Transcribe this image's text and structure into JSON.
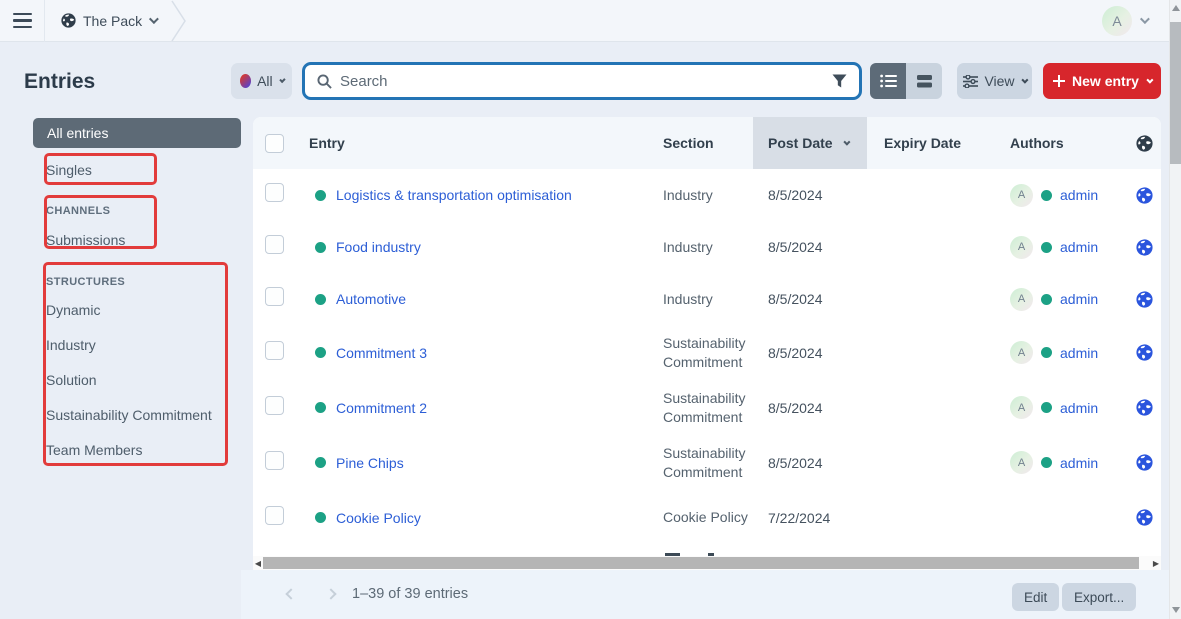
{
  "topbar": {
    "site_name": "The Pack",
    "user_initial": "A"
  },
  "page_title": "Entries",
  "toolbar": {
    "site_filter_label": "All",
    "search_placeholder": "Search",
    "view_label": "View",
    "new_entry_label": "New entry"
  },
  "sidebar": {
    "all_entries_label": "All entries",
    "singles_label": "Singles",
    "channels_heading": "CHANNELS",
    "channels": [
      "Submissions"
    ],
    "structures_heading": "STRUCTURES",
    "structures": [
      "Dynamic",
      "Industry",
      "Solution",
      "Sustainability Commitment",
      "Team Members"
    ]
  },
  "table": {
    "columns": [
      "Entry",
      "Section",
      "Post Date",
      "Expiry Date",
      "Authors"
    ],
    "sorted_column": "Post Date",
    "rows": [
      {
        "title": "Logistics & transportation optimisation",
        "section": "Industry",
        "post_date": "8/5/2024",
        "expiry_date": "",
        "author": "admin"
      },
      {
        "title": "Food industry",
        "section": "Industry",
        "post_date": "8/5/2024",
        "expiry_date": "",
        "author": "admin"
      },
      {
        "title": "Automotive",
        "section": "Industry",
        "post_date": "8/5/2024",
        "expiry_date": "",
        "author": "admin"
      },
      {
        "title": "Commitment 3",
        "section": "Sustainability Commitment",
        "post_date": "8/5/2024",
        "expiry_date": "",
        "author": "admin"
      },
      {
        "title": "Commitment 2",
        "section": "Sustainability Commitment",
        "post_date": "8/5/2024",
        "expiry_date": "",
        "author": "admin"
      },
      {
        "title": "Pine Chips",
        "section": "Sustainability Commitment",
        "post_date": "8/5/2024",
        "expiry_date": "",
        "author": "admin"
      },
      {
        "title": "Cookie Policy",
        "section": "Cookie Policy",
        "post_date": "7/22/2024",
        "expiry_date": "",
        "author": ""
      }
    ],
    "author_avatar_initial": "A"
  },
  "footer": {
    "page_info": "1–39 of 39 entries",
    "edit_label": "Edit",
    "export_label": "Export..."
  },
  "colors": {
    "annotation_red": "#e23b3b",
    "primary_action_red": "#d7262c",
    "link_blue": "#2c5ed6",
    "status_teal": "#1ca185",
    "selected_sidebar": "#5d6a76",
    "search_focus_border": "#2374b5"
  }
}
